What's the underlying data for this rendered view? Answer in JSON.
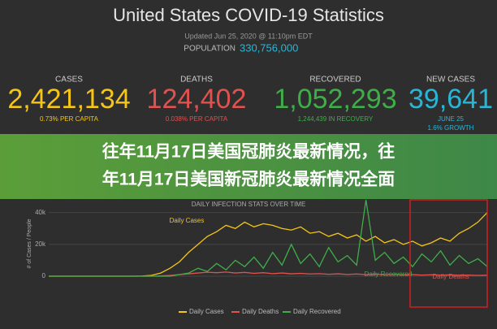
{
  "header": {
    "title": "United States COVID-19 Statistics",
    "updated": "Updated Jun 25, 2020 @ 11:10pm EDT",
    "population_label": "POPULATION",
    "population": "330,756,000"
  },
  "stats": [
    {
      "label": "CASES",
      "value": "2,421,134",
      "sub": "0.73% PER CAPITA"
    },
    {
      "label": "DEATHS",
      "value": "124,402",
      "sub": "0.038% PER CAPITA"
    },
    {
      "label": "RECOVERED",
      "value": "1,052,293",
      "sub": "1,244,439 IN RECOVERY"
    },
    {
      "label": "NEW CASES",
      "value": "39,641",
      "sub": "JUNE 25",
      "sub2": "1.6% GROWTH"
    }
  ],
  "banner": {
    "line1": "往年11月17日美国冠肺炎最新情况，往",
    "line2": "年11月17日美国新冠肺炎最新情况全面"
  },
  "chart_data": {
    "type": "line",
    "title": "DAILY INFECTION STATS OVER TIME",
    "y_label": "# of Cases / People",
    "categories": [
      null,
      null,
      null,
      null,
      null,
      null,
      null,
      null,
      null,
      null,
      null,
      null,
      null,
      null,
      null,
      null,
      null,
      null,
      null,
      null,
      null,
      null,
      null,
      null,
      null,
      null,
      null,
      null,
      null,
      null,
      null,
      null,
      null,
      null,
      null,
      null,
      null,
      null,
      null,
      null,
      null,
      null,
      null,
      null,
      null,
      null,
      null,
      null
    ],
    "ylim": [
      0,
      48000
    ],
    "yticks": [
      {
        "value": 0,
        "label": "0"
      },
      {
        "value": 20000,
        "label": "20k"
      },
      {
        "value": 40000,
        "label": "40k"
      }
    ],
    "annotations": [
      "Daily Cases",
      "Daily Recovered",
      "Daily Deaths"
    ],
    "series": [
      {
        "name": "Daily Cases",
        "color": "#f5c518",
        "values": [
          0,
          0,
          0,
          0,
          0,
          0,
          0,
          0,
          0,
          0,
          100,
          500,
          2000,
          5000,
          9000,
          15000,
          20000,
          25000,
          28000,
          32000,
          30000,
          34000,
          31000,
          33000,
          32000,
          30000,
          29000,
          31000,
          27000,
          28000,
          25000,
          27000,
          24000,
          26000,
          22000,
          25000,
          21000,
          23000,
          20000,
          22000,
          19000,
          21000,
          24000,
          22000,
          27000,
          30000,
          34000,
          40000
        ]
      },
      {
        "name": "Daily Deaths",
        "color": "#e0524f",
        "values": [
          0,
          0,
          0,
          0,
          0,
          0,
          0,
          0,
          0,
          0,
          0,
          0,
          200,
          500,
          1000,
          1500,
          2000,
          2500,
          2200,
          2600,
          2000,
          2400,
          1800,
          2200,
          1600,
          2000,
          1500,
          1800,
          1400,
          1600,
          1200,
          1500,
          1100,
          1400,
          1000,
          1300,
          900,
          1200,
          800,
          1000,
          700,
          900,
          700,
          800,
          600,
          700,
          500,
          600
        ]
      },
      {
        "name": "Daily Recovered",
        "color": "#3fae49",
        "values": [
          0,
          0,
          0,
          0,
          0,
          0,
          0,
          0,
          0,
          0,
          0,
          0,
          0,
          0,
          1000,
          2000,
          5000,
          3000,
          8000,
          4000,
          10000,
          6000,
          12000,
          5000,
          15000,
          7000,
          20000,
          8000,
          14000,
          6000,
          18000,
          9000,
          13000,
          7000,
          48000,
          10000,
          15000,
          8000,
          12000,
          6000,
          14000,
          9000,
          16000,
          7000,
          13000,
          8000,
          11000,
          6000
        ]
      }
    ]
  }
}
